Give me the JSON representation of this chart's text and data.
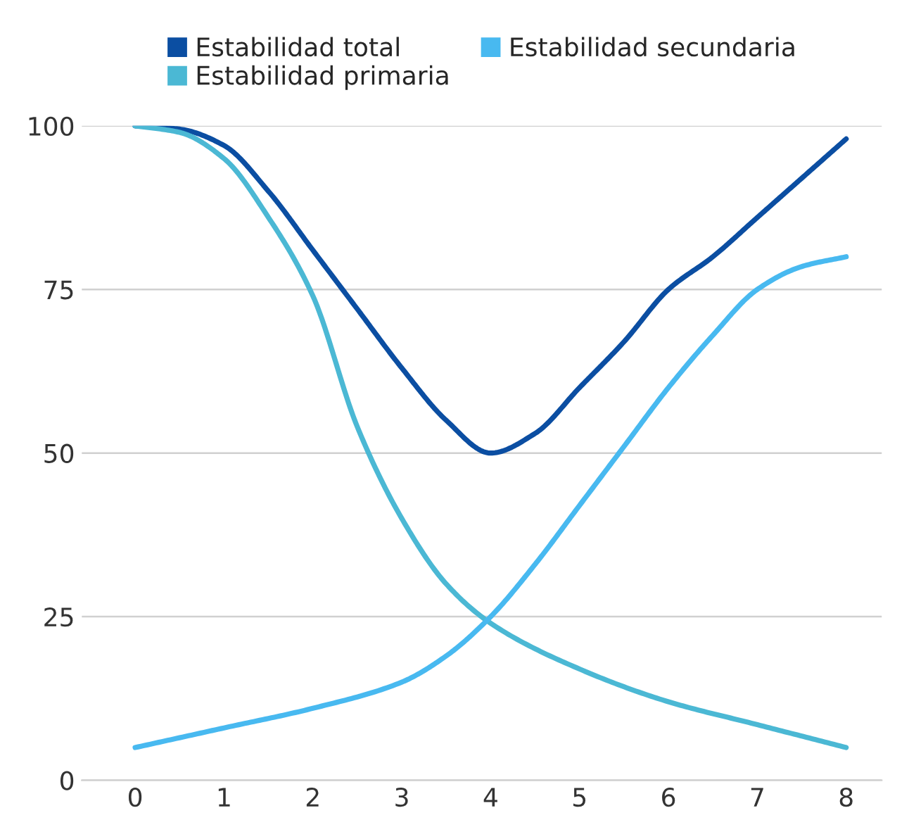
{
  "chart_data": {
    "type": "line",
    "legend": "top",
    "grid": "y",
    "marker": "none",
    "line_style": "solid",
    "xlim": [
      -0.6,
      8.4
    ],
    "ylim": [
      0,
      100
    ],
    "xticks": [
      0,
      1,
      2,
      3,
      4,
      5,
      6,
      7,
      8
    ],
    "yticks": [
      0,
      25,
      50,
      75,
      100
    ],
    "series": [
      {
        "name": "Estabilidad total",
        "color": "#0b4ea2",
        "x": [
          0,
          0.5,
          1,
          1.5,
          2,
          2.5,
          3,
          3.5,
          4,
          4.5,
          5,
          5.5,
          6,
          6.5,
          7,
          7.5,
          8
        ],
        "values": [
          100,
          99.5,
          97,
          90,
          81,
          72,
          63,
          55,
          50,
          53,
          60,
          67,
          75,
          80,
          86,
          92,
          98
        ]
      },
      {
        "name": "Estabilidad primaria",
        "color": "#4bb8d4",
        "x": [
          0,
          0.5,
          1,
          1.5,
          2,
          2.5,
          3,
          3.5,
          4,
          5,
          6,
          7,
          8
        ],
        "values": [
          100,
          99,
          95,
          86,
          74,
          54,
          40,
          30,
          24,
          17,
          12,
          8.5,
          5
        ]
      },
      {
        "name": "Estabilidad secundaria",
        "color": "#48b9f0",
        "x": [
          0,
          1,
          2,
          3,
          3.5,
          4,
          4.5,
          5,
          5.5,
          6,
          6.5,
          7,
          7.5,
          8
        ],
        "values": [
          5,
          8,
          11,
          15,
          19,
          25,
          33,
          42,
          51,
          60,
          68,
          75,
          78.5,
          80
        ]
      }
    ]
  }
}
